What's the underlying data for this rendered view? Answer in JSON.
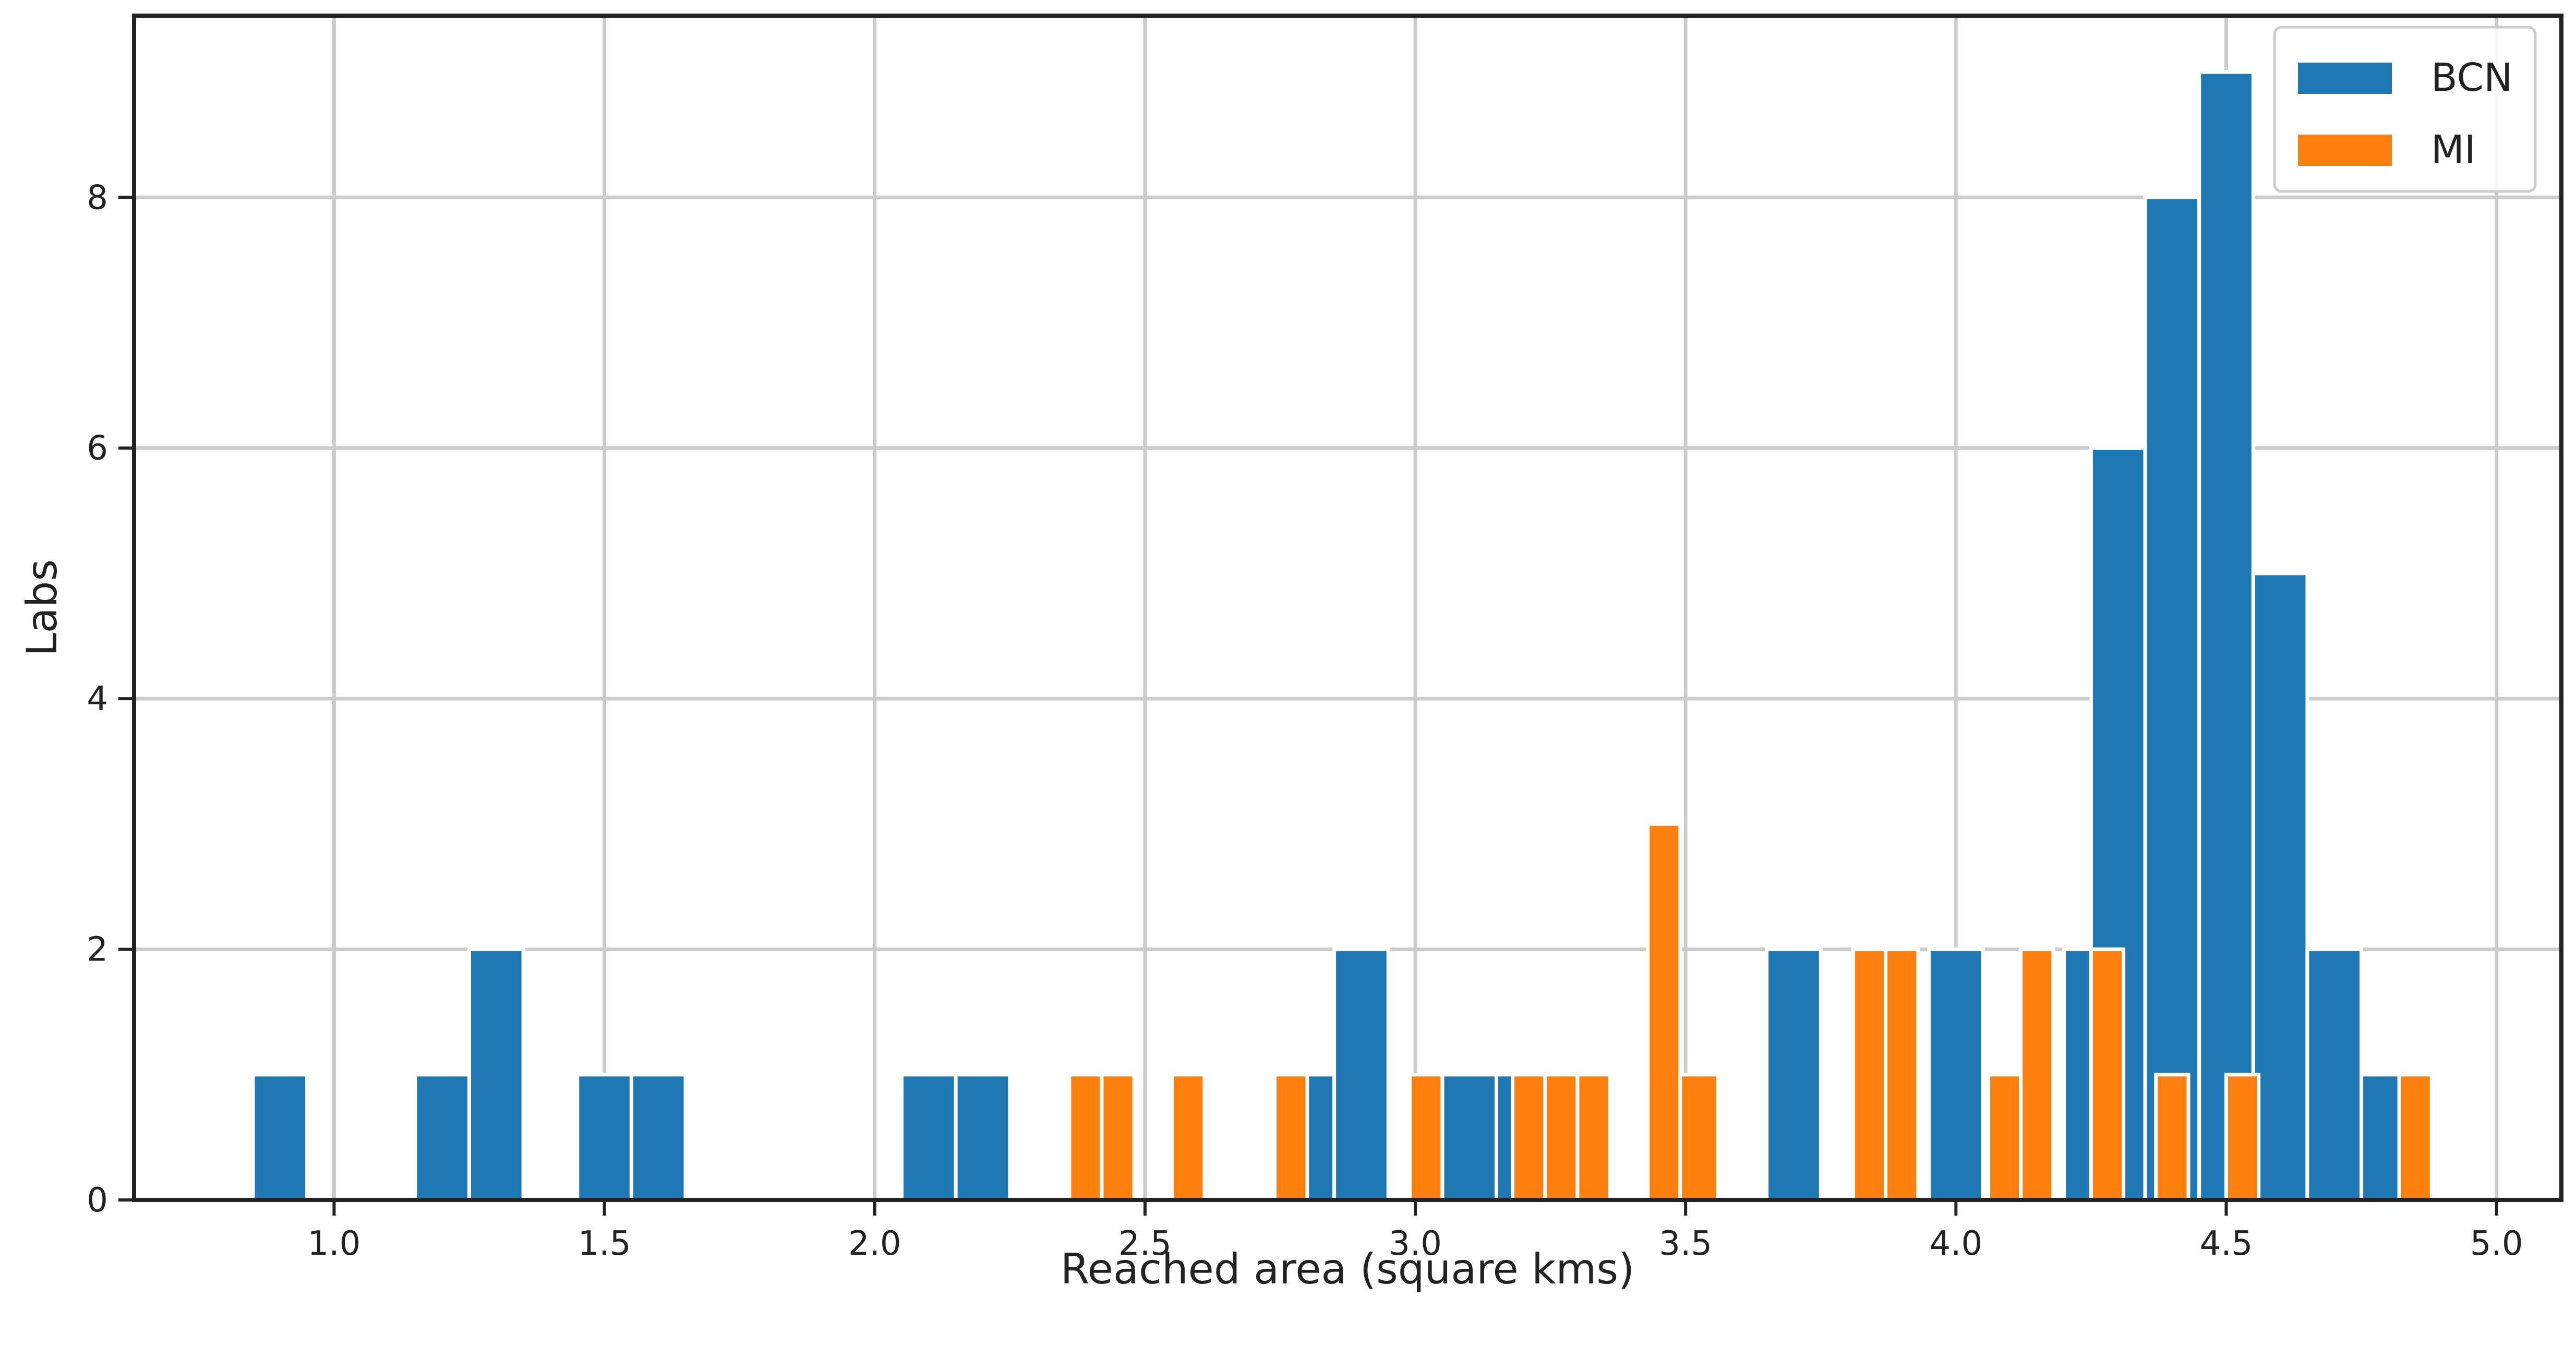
{
  "chart_data": {
    "type": "bar",
    "title": "",
    "xlabel": "Reached area (square kms)",
    "ylabel": "Labs",
    "xlim": [
      0.63,
      5.12
    ],
    "ylim": [
      0,
      9.45
    ],
    "xticks": [
      1.0,
      1.5,
      2.0,
      2.5,
      3.0,
      3.5,
      4.0,
      4.5,
      5.0
    ],
    "xtick_labels": [
      "1.0",
      "1.5",
      "2.0",
      "2.5",
      "3.0",
      "3.5",
      "4.0",
      "4.5",
      "5.0"
    ],
    "yticks": [
      0,
      2,
      4,
      6,
      8
    ],
    "ytick_labels": [
      "0",
      "2",
      "4",
      "6",
      "8"
    ],
    "grid": true,
    "legend_position": "top-right",
    "series": [
      {
        "name": "BCN",
        "color": "#1f77b4",
        "bins": [
          {
            "x0": 0.85,
            "x1": 0.95,
            "count": 1
          },
          {
            "x0": 1.15,
            "x1": 1.25,
            "count": 1
          },
          {
            "x0": 1.25,
            "x1": 1.35,
            "count": 2
          },
          {
            "x0": 1.45,
            "x1": 1.55,
            "count": 1
          },
          {
            "x0": 1.55,
            "x1": 1.65,
            "count": 1
          },
          {
            "x0": 2.05,
            "x1": 2.15,
            "count": 1
          },
          {
            "x0": 2.15,
            "x1": 2.25,
            "count": 1
          },
          {
            "x0": 2.79,
            "x1": 2.85,
            "count": 1
          },
          {
            "x0": 2.85,
            "x1": 2.95,
            "count": 2
          },
          {
            "x0": 3.05,
            "x1": 3.15,
            "count": 1
          },
          {
            "x0": 3.15,
            "x1": 3.19,
            "count": 1
          },
          {
            "x0": 3.65,
            "x1": 3.75,
            "count": 2
          },
          {
            "x0": 3.95,
            "x1": 4.05,
            "count": 2
          },
          {
            "x0": 4.2,
            "x1": 4.25,
            "count": 2
          },
          {
            "x0": 4.25,
            "x1": 4.35,
            "count": 6
          },
          {
            "x0": 4.35,
            "x1": 4.45,
            "count": 8
          },
          {
            "x0": 4.45,
            "x1": 4.55,
            "count": 9
          },
          {
            "x0": 4.55,
            "x1": 4.65,
            "count": 5
          },
          {
            "x0": 4.65,
            "x1": 4.75,
            "count": 2
          },
          {
            "x0": 4.75,
            "x1": 4.85,
            "count": 1
          }
        ]
      },
      {
        "name": "MI",
        "color": "#ff7f0e",
        "bins": [
          {
            "x0": 2.36,
            "x1": 2.42,
            "count": 1
          },
          {
            "x0": 2.42,
            "x1": 2.48,
            "count": 1
          },
          {
            "x0": 2.55,
            "x1": 2.61,
            "count": 1
          },
          {
            "x0": 2.74,
            "x1": 2.8,
            "count": 1
          },
          {
            "x0": 2.99,
            "x1": 3.05,
            "count": 1
          },
          {
            "x0": 3.18,
            "x1": 3.24,
            "count": 1
          },
          {
            "x0": 3.24,
            "x1": 3.3,
            "count": 1
          },
          {
            "x0": 3.3,
            "x1": 3.36,
            "count": 1
          },
          {
            "x0": 3.43,
            "x1": 3.49,
            "count": 3
          },
          {
            "x0": 3.49,
            "x1": 3.56,
            "count": 1
          },
          {
            "x0": 3.81,
            "x1": 3.87,
            "count": 2
          },
          {
            "x0": 3.87,
            "x1": 3.93,
            "count": 2
          },
          {
            "x0": 4.06,
            "x1": 4.12,
            "count": 1
          },
          {
            "x0": 4.12,
            "x1": 4.18,
            "count": 2
          },
          {
            "x0": 4.25,
            "x1": 4.31,
            "count": 2
          },
          {
            "x0": 4.37,
            "x1": 4.43,
            "count": 1
          },
          {
            "x0": 4.5,
            "x1": 4.56,
            "count": 1
          },
          {
            "x0": 4.82,
            "x1": 4.88,
            "count": 1
          }
        ]
      }
    ]
  }
}
